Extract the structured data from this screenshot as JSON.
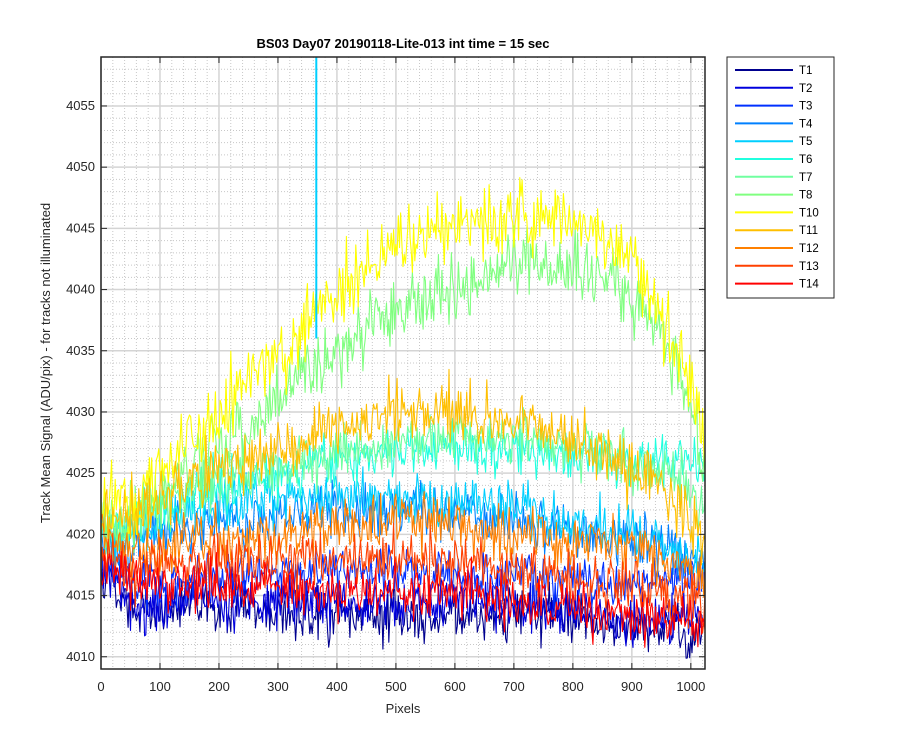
{
  "chart_data": {
    "type": "line",
    "title": "BS03 Day07 20190118-Lite-013 int time = 15 sec",
    "xlabel": "Pixels",
    "ylabel": "Track Mean Signal (ADU/pix) - for tracks not illuminated",
    "xlim": [
      0,
      1024
    ],
    "ylim": [
      4009,
      4059
    ],
    "xticks": [
      0,
      100,
      200,
      300,
      400,
      500,
      600,
      700,
      800,
      900,
      1000
    ],
    "yticks": [
      4010,
      4015,
      4020,
      4025,
      4030,
      4035,
      4040,
      4045,
      4050,
      4055
    ],
    "grid": true,
    "minor_grid": true,
    "legend_position": "outside-right",
    "x_profile": [
      0,
      50,
      100,
      200,
      300,
      400,
      500,
      600,
      700,
      800,
      900,
      950,
      1000,
      1024
    ],
    "series": [
      {
        "name": "T1",
        "color": "#00008f",
        "noise": 1.5,
        "values": [
          4017,
          4014,
          4014,
          4014,
          4013.5,
          4013.5,
          4013.5,
          4013.5,
          4013.5,
          4013,
          4012.5,
          4012.5,
          4012,
          4012
        ]
      },
      {
        "name": "T2",
        "color": "#0000dd",
        "noise": 1.5,
        "values": [
          4017,
          4014.5,
          4014.5,
          4014.5,
          4014.5,
          4014.5,
          4014.5,
          4014.5,
          4014,
          4013.5,
          4013,
          4013,
          4013,
          4013
        ]
      },
      {
        "name": "T3",
        "color": "#0030ff",
        "noise": 1.5,
        "values": [
          4018,
          4016,
          4016,
          4016.5,
          4017,
          4017,
          4017,
          4017,
          4016.5,
          4016,
          4016,
          4016,
          4016,
          4016
        ]
      },
      {
        "name": "T4",
        "color": "#0080ff",
        "noise": 1.5,
        "values": [
          4019,
          4019,
          4020,
          4021,
          4021.5,
          4022,
          4022,
          4022,
          4021,
          4020,
          4019.5,
          4019,
          4018,
          4018
        ]
      },
      {
        "name": "T5",
        "color": "#00cfff",
        "noise": 1.5,
        "values": [
          4020,
          4020,
          4021,
          4022.5,
          4023,
          4023,
          4023,
          4022.5,
          4022,
          4021,
          4020,
          4019,
          4018,
          4017
        ]
      },
      {
        "name": "T6",
        "color": "#20ffdf",
        "noise": 1.5,
        "values": [
          4020,
          4021,
          4022,
          4024,
          4025,
          4026,
          4027,
          4027,
          4027,
          4026.5,
          4026,
          4026,
          4026,
          4026
        ]
      },
      {
        "name": "T7",
        "color": "#70ffa0",
        "noise": 1.5,
        "values": [
          4020,
          4021,
          4022.5,
          4024.5,
          4025.5,
          4026.5,
          4027.5,
          4028,
          4028,
          4027,
          4026,
          4025.5,
          4024,
          4022
        ]
      },
      {
        "name": "T8",
        "color": "#80ff80",
        "noise": 2.0,
        "values": [
          4021,
          4021,
          4023,
          4027,
          4031,
          4035,
          4038,
          4040.5,
          4042,
          4042.5,
          4039,
          4037,
          4030,
          4024
        ]
      },
      {
        "name": "T10",
        "color": "#ffff00",
        "noise": 2.0,
        "values": [
          4023,
          4022,
          4025,
          4030,
          4035,
          4040,
          4043.5,
          4045.5,
          4046,
          4046,
          4042,
          4038,
          4032,
          4026
        ]
      },
      {
        "name": "T11",
        "color": "#ffbf00",
        "noise": 1.8,
        "values": [
          4021,
          4021.5,
          4023,
          4025.5,
          4027,
          4028.5,
          4030,
          4030,
          4029,
          4027.5,
          4025.5,
          4024,
          4021,
          4019
        ]
      },
      {
        "name": "T12",
        "color": "#ff8000",
        "noise": 1.6,
        "values": [
          4020,
          4018.5,
          4018.5,
          4019.5,
          4020,
          4020.5,
          4021,
          4020.5,
          4020,
          4019.5,
          4019,
          4018,
          4017,
          4016
        ]
      },
      {
        "name": "T13",
        "color": "#ff4000",
        "noise": 1.6,
        "values": [
          4019,
          4017,
          4017.5,
          4018,
          4018,
          4018,
          4018,
          4017.5,
          4017,
          4016.5,
          4015.5,
          4015,
          4014.5,
          4014
        ]
      },
      {
        "name": "T14",
        "color": "#ff0000",
        "noise": 1.5,
        "values": [
          4018,
          4016,
          4016,
          4016,
          4016,
          4015.5,
          4015.5,
          4015,
          4014.5,
          4014,
          4013,
          4013,
          4012.5,
          4012
        ]
      }
    ],
    "annotations": [
      {
        "kind": "spike",
        "series": "T5",
        "x": 365,
        "y_from": 4036,
        "y_to": 4059
      }
    ]
  }
}
